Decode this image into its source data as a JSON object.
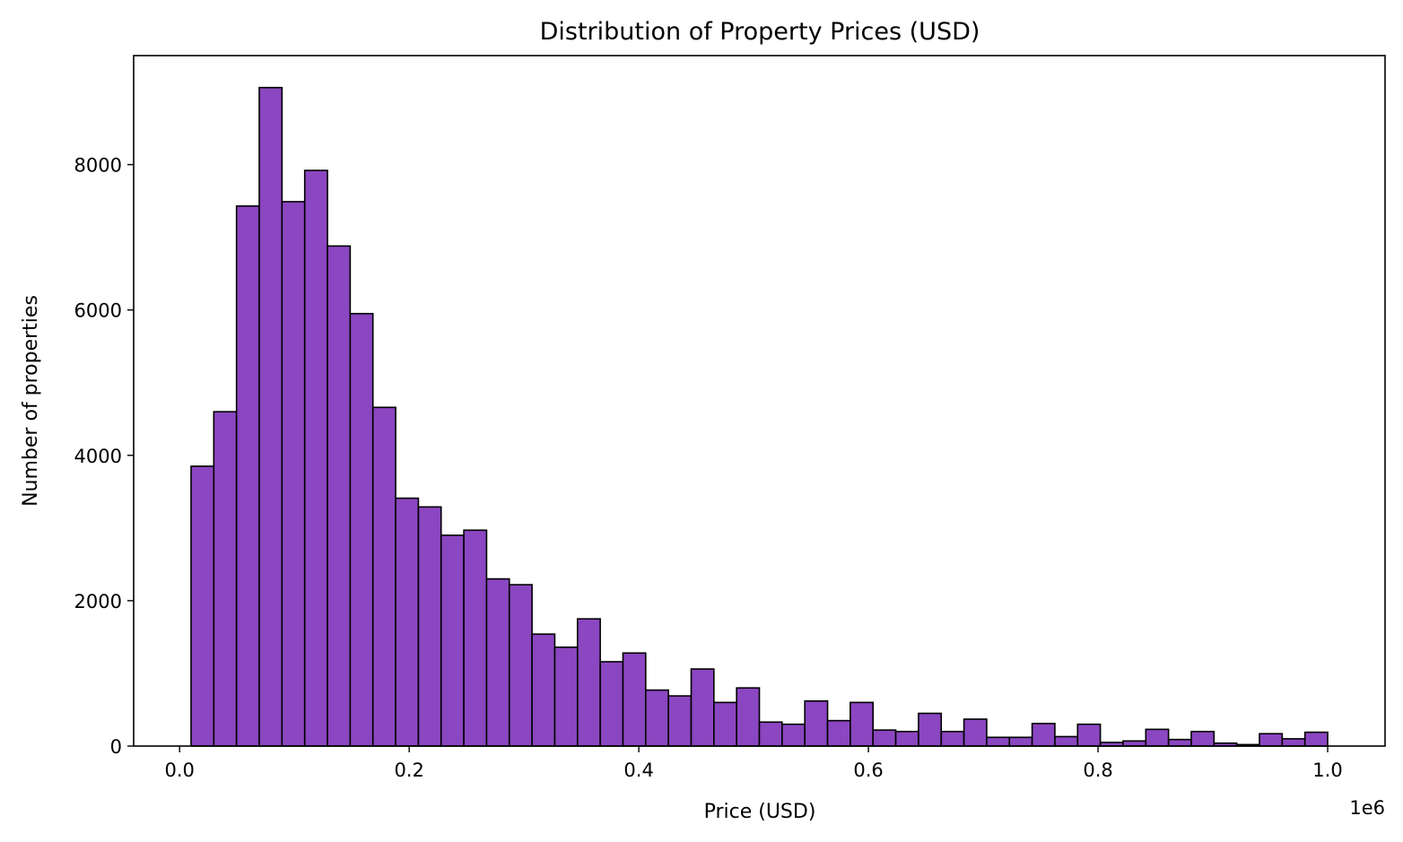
{
  "chart_data": {
    "type": "bar",
    "subtype": "histogram",
    "title": "Distribution of Property Prices (USD)",
    "xlabel": "Price (USD)",
    "ylabel": "Number of properties",
    "x_offset_label": "1e6",
    "xlim": [
      -0.04,
      1.05
    ],
    "ylim": [
      0,
      9500
    ],
    "grid": false,
    "bar_color": "#8b46c1",
    "edge_color": "#000000",
    "x_ticks": [
      {
        "value": 0.0,
        "label": "0.0"
      },
      {
        "value": 0.2,
        "label": "0.2"
      },
      {
        "value": 0.4,
        "label": "0.4"
      },
      {
        "value": 0.6,
        "label": "0.6"
      },
      {
        "value": 0.8,
        "label": "0.8"
      },
      {
        "value": 1.0,
        "label": "1.0"
      }
    ],
    "y_ticks": [
      {
        "value": 0,
        "label": "0"
      },
      {
        "value": 2000,
        "label": "2000"
      },
      {
        "value": 4000,
        "label": "4000"
      },
      {
        "value": 6000,
        "label": "6000"
      },
      {
        "value": 8000,
        "label": "8000"
      }
    ],
    "bin_start": 0.01,
    "bin_width": 0.0198,
    "values": [
      3850,
      4600,
      7430,
      9060,
      7490,
      7920,
      6880,
      5950,
      4660,
      3410,
      3290,
      2900,
      2970,
      2300,
      2220,
      1540,
      1360,
      1750,
      1160,
      1280,
      770,
      690,
      1060,
      600,
      800,
      330,
      300,
      620,
      350,
      600,
      220,
      200,
      450,
      200,
      370,
      120,
      120,
      310,
      130,
      300,
      50,
      70,
      230,
      90,
      200,
      40,
      20,
      170,
      100,
      190
    ]
  }
}
